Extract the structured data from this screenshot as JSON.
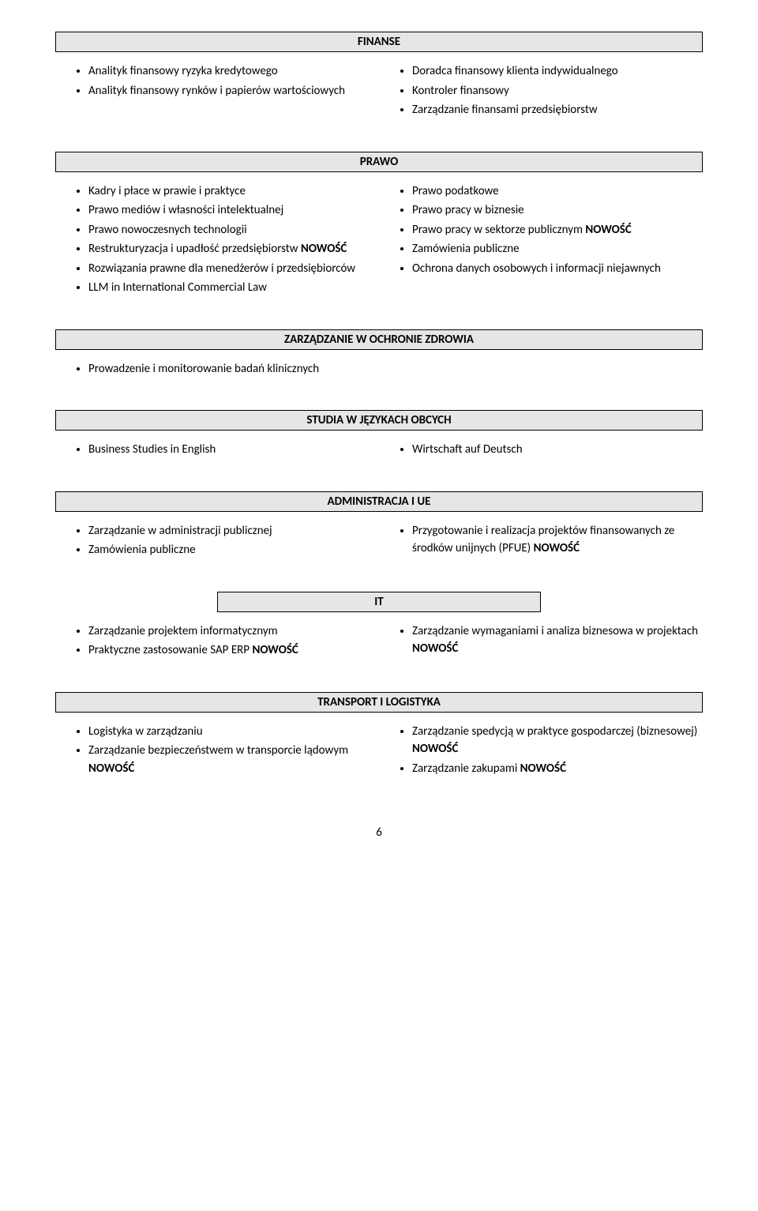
{
  "sections": {
    "finanse": {
      "title": "FINANSE",
      "left": [
        {
          "text": "Analityk finansowy ryzyka kredytowego"
        },
        {
          "text": "Analityk finansowy rynków i papierów wartościowych"
        }
      ],
      "right": [
        {
          "text": "Doradca finansowy klienta indywidualnego"
        },
        {
          "text": "Kontroler finansowy"
        },
        {
          "text": "Zarządzanie finansami przedsiębiorstw"
        }
      ]
    },
    "prawo": {
      "title": "PRAWO",
      "left": [
        {
          "text": "Kadry i płace w prawie i praktyce"
        },
        {
          "text": "Prawo mediów i własności intelektualnej"
        },
        {
          "text": "Prawo nowoczesnych technologii"
        },
        {
          "text": "Restrukturyzacja i upadłość przedsiębiorstw",
          "suffix_bold": "NOWOŚĆ"
        },
        {
          "text": "Rozwiązania prawne dla menedżerów i przedsiębiorców"
        },
        {
          "text": "LLM in International Commercial Law"
        }
      ],
      "right": [
        {
          "text": "Prawo podatkowe"
        },
        {
          "text": "Prawo pracy w biznesie"
        },
        {
          "text": "Prawo pracy w sektorze publicznym",
          "suffix_bold": "NOWOŚĆ"
        },
        {
          "text": "Zamówienia publiczne"
        },
        {
          "text": "Ochrona danych osobowych i informacji niejawnych"
        }
      ]
    },
    "zdrowie": {
      "title": "ZARZĄDZANIE W OCHRONIE ZDROWIA",
      "items": [
        {
          "text": "Prowadzenie i monitorowanie badań klinicznych"
        }
      ]
    },
    "jezyki": {
      "title": "STUDIA W JĘZYKACH OBCYCH",
      "left": [
        {
          "text": "Business Studies in English"
        }
      ],
      "right": [
        {
          "text": "Wirtschaft auf Deutsch"
        }
      ]
    },
    "admin": {
      "title": "ADMINISTRACJA I UE",
      "left": [
        {
          "text": "Zarządzanie w administracji publicznej"
        },
        {
          "text": "Zamówienia publiczne"
        }
      ],
      "right": [
        {
          "text": "Przygotowanie i realizacja projektów finansowanych ze środków unijnych (PFUE)",
          "suffix_bold": "NOWOŚĆ"
        }
      ]
    },
    "it": {
      "title": "IT",
      "left": [
        {
          "text": "Zarządzanie projektem informatycznym"
        },
        {
          "text": "Praktyczne zastosowanie SAP ERP",
          "suffix_bold": "NOWOŚĆ"
        }
      ],
      "right": [
        {
          "text": "Zarządzanie wymaganiami i analiza biznesowa w projektach ",
          "inline_bold": "NOWOŚĆ"
        }
      ]
    },
    "transport": {
      "title": "TRANSPORT I LOGISTYKA",
      "left": [
        {
          "text": "Logistyka w zarządzaniu"
        },
        {
          "text": "Zarządzanie bezpieczeństwem w transporcie lądowym ",
          "inline_bold": "NOWOŚĆ"
        }
      ],
      "right": [
        {
          "text": "Zarządzanie spedycją w praktyce gospodarczej (biznesowej) ",
          "inline_bold": "NOWOŚĆ"
        },
        {
          "text": "Zarządzanie zakupami ",
          "inline_bold": "NOWOŚĆ"
        }
      ]
    }
  },
  "page_number": "6",
  "colors": {
    "header_bg": "#e6e6e6",
    "header_border": "#000000",
    "page_bg": "#ffffff",
    "text": "#000000"
  }
}
